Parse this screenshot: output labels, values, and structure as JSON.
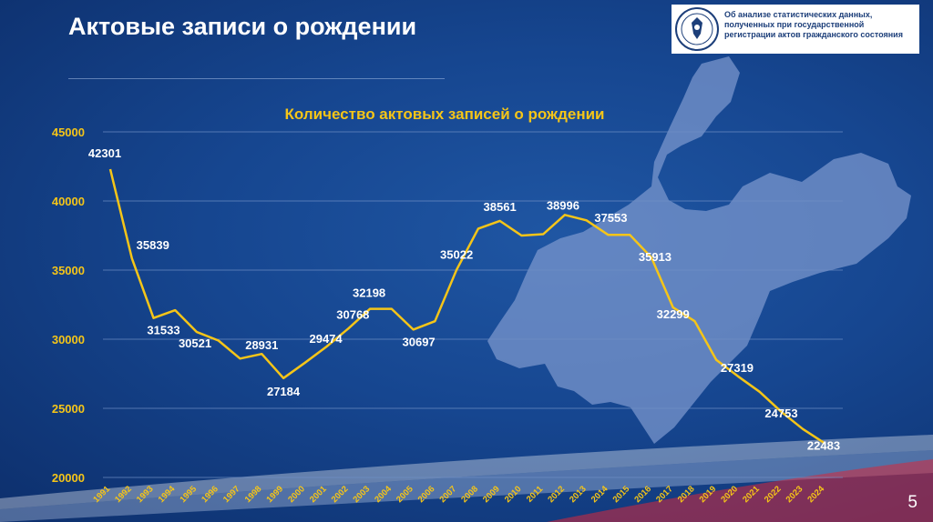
{
  "page": {
    "title": "Актовые записи о рождении",
    "page_number": "5"
  },
  "header_card": {
    "lines": [
      "Об анализе статистических данных,",
      "полученных при государственной",
      "регистрации актов гражданского состояния"
    ],
    "logo_icon": "coat-of-arms-seal-icon"
  },
  "colors": {
    "background": "#164690",
    "line": "#f5c518",
    "title": "#f5c518",
    "axis_tick_labels": "#f5c518",
    "map_fill": "#7d98cf"
  },
  "decor": {
    "map_icon": "region-map-silhouette-icon"
  },
  "chart_data": {
    "type": "line",
    "title": "Количество актовых записей о рождении",
    "xlabel": "",
    "ylabel": "",
    "ylim": [
      20000,
      45000
    ],
    "yticks": [
      20000,
      25000,
      30000,
      35000,
      40000,
      45000
    ],
    "grid": true,
    "legend": "none",
    "categories": [
      "1991",
      "1992",
      "1993",
      "1994",
      "1995",
      "1996",
      "1997",
      "1998",
      "1999",
      "2000",
      "2001",
      "2002",
      "2003",
      "2004",
      "2005",
      "2006",
      "2007",
      "2008",
      "2009",
      "2010",
      "2011",
      "2012",
      "2013",
      "2014",
      "2015",
      "2016",
      "2017",
      "2018",
      "2019",
      "2020",
      "2021",
      "2022",
      "2023",
      "2024"
    ],
    "series": [
      {
        "values": [
          42301,
          35839,
          31533,
          32100,
          30521,
          29900,
          28600,
          28931,
          27184,
          28300,
          29474,
          30768,
          32198,
          32198,
          30697,
          31300,
          35022,
          38000,
          38561,
          37500,
          37600,
          38996,
          38600,
          37553,
          37553,
          35913,
          32299,
          31300,
          28500,
          27319,
          26200,
          24753,
          23500,
          22483
        ]
      }
    ],
    "data_labels": [
      {
        "index": 0,
        "text": "42301"
      },
      {
        "index": 1,
        "text": "35839"
      },
      {
        "index": 2,
        "text": "31533"
      },
      {
        "index": 4,
        "text": "30521"
      },
      {
        "index": 7,
        "text": "28931"
      },
      {
        "index": 8,
        "text": "27184"
      },
      {
        "index": 10,
        "text": "29474"
      },
      {
        "index": 11,
        "text": "30768"
      },
      {
        "index": 12,
        "text": "32198"
      },
      {
        "index": 14,
        "text": "30697"
      },
      {
        "index": 16,
        "text": "35022"
      },
      {
        "index": 18,
        "text": "38561"
      },
      {
        "index": 21,
        "text": "38996"
      },
      {
        "index": 23,
        "text": "37553"
      },
      {
        "index": 25,
        "text": "35913"
      },
      {
        "index": 26,
        "text": "32299"
      },
      {
        "index": 29,
        "text": "27319"
      },
      {
        "index": 31,
        "text": "24753"
      },
      {
        "index": 33,
        "text": "22483"
      }
    ]
  }
}
